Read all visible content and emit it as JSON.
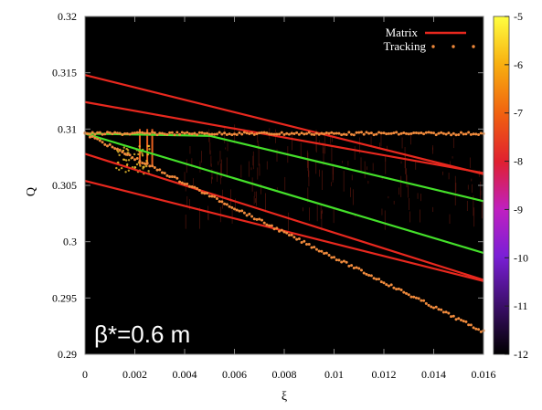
{
  "chart_data": {
    "type": "line",
    "xlabel": "ξ",
    "ylabel": "Q",
    "xlim": [
      0,
      0.016
    ],
    "ylim": [
      0.29,
      0.32
    ],
    "xticks": [
      "0",
      "0.002",
      "0.004",
      "0.006",
      "0.008",
      "0.01",
      "0.012",
      "0.014",
      "0.016"
    ],
    "yticks": [
      "0.29",
      "0.295",
      "0.3",
      "0.305",
      "0.31",
      "0.315",
      "0.32"
    ],
    "background": "#000000",
    "legend": {
      "position": "top-right",
      "entries": [
        {
          "label": "Matrix",
          "color": "#e8281e",
          "style": "line"
        },
        {
          "label": "Tracking",
          "color": "#f08a3c",
          "style": "dots"
        }
      ]
    },
    "annotation": "β*=0.6 m",
    "colorbar": {
      "ticks": [
        "-5",
        "-6",
        "-7",
        "-8",
        "-9",
        "-10",
        "-11",
        "-12"
      ],
      "range": [
        -12,
        -5
      ],
      "colors": [
        "#000000",
        "#3a0e66",
        "#7a1fd6",
        "#c020c0",
        "#e02030",
        "#f06010",
        "#f8b010",
        "#ffff40"
      ]
    },
    "series": [
      {
        "name": "Matrix",
        "color": "#e8281e",
        "lines": [
          {
            "x": [
              0,
              0.016
            ],
            "y": [
              0.3148,
              0.306
            ]
          },
          {
            "x": [
              0,
              0.016
            ],
            "y": [
              0.3124,
              0.3061
            ]
          },
          {
            "x": [
              0,
              0.016
            ],
            "y": [
              0.3078,
              0.2966
            ]
          },
          {
            "x": [
              0,
              0.016
            ],
            "y": [
              0.3054,
              0.2965
            ]
          }
        ]
      },
      {
        "name": "green",
        "color": "#44e02a",
        "lines": [
          {
            "x": [
              0,
              0.005,
              0.016
            ],
            "y": [
              0.3096,
              0.3094,
              0.3036
            ]
          },
          {
            "x": [
              0,
              0.016
            ],
            "y": [
              0.3096,
              0.299
            ]
          }
        ]
      },
      {
        "name": "Tracking",
        "color": "#f08a3c",
        "lines": [
          {
            "x": [
              0,
              0.016
            ],
            "y": [
              0.3096,
              0.3096
            ]
          },
          {
            "x": [
              0,
              0.016
            ],
            "y": [
              0.3096,
              0.292
            ]
          }
        ]
      }
    ]
  }
}
